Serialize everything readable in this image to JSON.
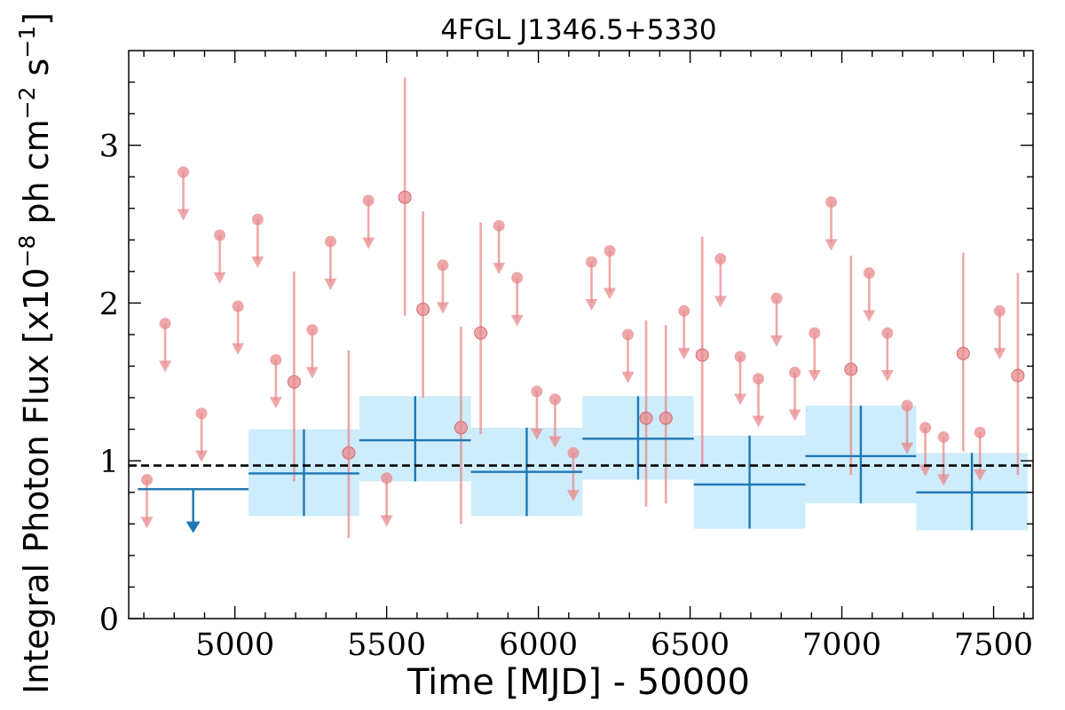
{
  "chart_data": {
    "type": "scatter",
    "title": "4FGL J1346.5+5330",
    "xlabel": "Time [MJD] - 50000",
    "ylabel_main": "Integral Photon Flux [x10",
    "ylabel_exp1": "−8",
    "ylabel_mid": " ph cm",
    "ylabel_exp2": "−2",
    "ylabel_mid2": " s",
    "ylabel_exp3": "−1",
    "ylabel_end": "]",
    "xlim": [
      4650,
      7630
    ],
    "ylim": [
      0,
      3.6
    ],
    "xticks": [
      5000,
      5500,
      6000,
      6500,
      7000,
      7500
    ],
    "yticks": [
      0,
      1,
      2,
      3
    ],
    "mean_flux": 0.97,
    "colors": {
      "long_bins": "#1f77b4",
      "long_band": "#cdecfc",
      "short_bins": "#e8898c",
      "mean_line": "#000000"
    },
    "long_bins": [
      {
        "x0": 4680,
        "x1": 5045,
        "upper_limit": 0.82
      },
      {
        "x0": 5045,
        "x1": 5410,
        "y": 0.92,
        "ylo": 0.65,
        "yhi": 1.2
      },
      {
        "x0": 5410,
        "x1": 5778,
        "y": 1.13,
        "ylo": 0.87,
        "yhi": 1.41
      },
      {
        "x0": 5778,
        "x1": 6145,
        "y": 0.93,
        "ylo": 0.65,
        "yhi": 1.21
      },
      {
        "x0": 6145,
        "x1": 6512,
        "y": 1.14,
        "ylo": 0.88,
        "yhi": 1.41
      },
      {
        "x0": 6512,
        "x1": 6880,
        "y": 0.85,
        "ylo": 0.57,
        "yhi": 1.16
      },
      {
        "x0": 6880,
        "x1": 7245,
        "y": 1.03,
        "ylo": 0.73,
        "yhi": 1.35
      },
      {
        "x0": 7245,
        "x1": 7612,
        "y": 0.8,
        "ylo": 0.56,
        "yhi": 1.05
      }
    ],
    "short_bins": [
      {
        "x": 4710,
        "ul": 0.88
      },
      {
        "x": 4770,
        "ul": 1.87
      },
      {
        "x": 4830,
        "ul": 2.83
      },
      {
        "x": 4890,
        "ul": 1.3
      },
      {
        "x": 4950,
        "ul": 2.43
      },
      {
        "x": 5010,
        "ul": 1.98
      },
      {
        "x": 5075,
        "ul": 2.53
      },
      {
        "x": 5135,
        "ul": 1.64
      },
      {
        "x": 5195,
        "y": 1.5,
        "ylo": 0.87,
        "yhi": 2.2
      },
      {
        "x": 5255,
        "ul": 1.83
      },
      {
        "x": 5315,
        "ul": 2.39
      },
      {
        "x": 5375,
        "y": 1.05,
        "ylo": 0.51,
        "yhi": 1.7
      },
      {
        "x": 5440,
        "ul": 2.65
      },
      {
        "x": 5500,
        "ul": 0.89
      },
      {
        "x": 5560,
        "y": 2.67,
        "ylo": 1.92,
        "yhi": 3.43
      },
      {
        "x": 5620,
        "y": 1.96,
        "ylo": 1.4,
        "yhi": 2.58
      },
      {
        "x": 5685,
        "ul": 2.24
      },
      {
        "x": 5745,
        "y": 1.21,
        "ylo": 0.6,
        "yhi": 1.85
      },
      {
        "x": 5810,
        "y": 1.81,
        "ylo": 1.17,
        "yhi": 2.51
      },
      {
        "x": 5870,
        "ul": 2.49
      },
      {
        "x": 5930,
        "ul": 2.16
      },
      {
        "x": 5995,
        "ul": 1.44
      },
      {
        "x": 6055,
        "ul": 1.39
      },
      {
        "x": 6115,
        "ul": 1.05
      },
      {
        "x": 6175,
        "ul": 2.26
      },
      {
        "x": 6235,
        "ul": 2.33
      },
      {
        "x": 6295,
        "ul": 1.8
      },
      {
        "x": 6355,
        "y": 1.27,
        "ylo": 0.71,
        "yhi": 1.89
      },
      {
        "x": 6420,
        "y": 1.27,
        "ylo": 0.73,
        "yhi": 1.86
      },
      {
        "x": 6480,
        "ul": 1.95
      },
      {
        "x": 6540,
        "y": 1.67,
        "ylo": 0.96,
        "yhi": 2.42
      },
      {
        "x": 6600,
        "ul": 2.28
      },
      {
        "x": 6665,
        "ul": 1.66
      },
      {
        "x": 6725,
        "ul": 1.52
      },
      {
        "x": 6785,
        "ul": 2.03
      },
      {
        "x": 6845,
        "ul": 1.56
      },
      {
        "x": 6910,
        "ul": 1.81
      },
      {
        "x": 6965,
        "ul": 2.64
      },
      {
        "x": 7030,
        "y": 1.58,
        "ylo": 0.91,
        "yhi": 2.3
      },
      {
        "x": 7090,
        "ul": 2.19
      },
      {
        "x": 7150,
        "ul": 1.81
      },
      {
        "x": 7215,
        "ul": 1.35
      },
      {
        "x": 7275,
        "ul": 1.21
      },
      {
        "x": 7335,
        "ul": 1.15
      },
      {
        "x": 7400,
        "y": 1.68,
        "ylo": 1.06,
        "yhi": 2.32
      },
      {
        "x": 7455,
        "ul": 1.18
      },
      {
        "x": 7520,
        "ul": 1.95
      },
      {
        "x": 7580,
        "y": 1.54,
        "ylo": 0.91,
        "yhi": 2.19
      }
    ]
  }
}
